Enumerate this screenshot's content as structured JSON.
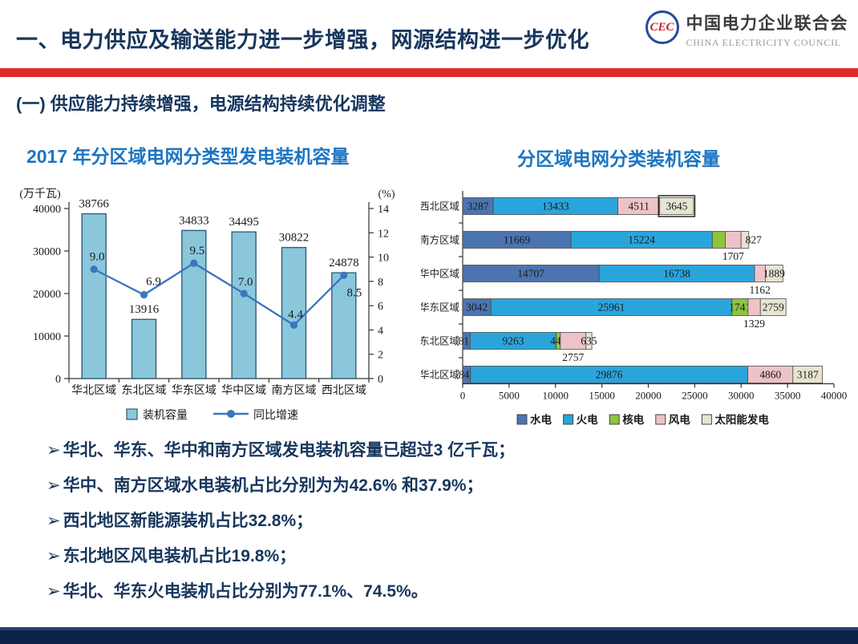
{
  "colors": {
    "heading": "#17365D",
    "accent_red": "#E02B2B",
    "chart_title_blue": "#1C75C2",
    "footer_navy": "#0C2347",
    "footer_edge": "#24416E",
    "logo_text": "#3A3A3A",
    "logo_sub": "#9A9A9A",
    "logo_ring": "#27489C",
    "logo_cec": "#C8202C"
  },
  "header": {
    "title": "一、电力供应及输送能力进一步增强，网源结构进一步优化",
    "logo": {
      "cn": "中国电力企业联合会",
      "en": "CHINA ELECTRICITY COUNCIL",
      "emblem": "CEC"
    }
  },
  "section": {
    "title": "(一)  供应能力持续增强，电源结构持续优化调整"
  },
  "bullets": {
    "marker": "➢",
    "items": [
      "华北、华东、华中和南方区域发电装机容量已超过3 亿千瓦；",
      "华中、南方区域水电装机占比分别为为42.6% 和37.9%；",
      "西北地区新能源装机占比32.8%；",
      "东北地区风电装机占比19.8%；",
      "华北、华东火电装机占比分别为77.1%、74.5%。"
    ]
  },
  "chart_data": [
    {
      "type": "bar",
      "title": "2017 年分区域电网分类型发电装机容量",
      "categories": [
        "华北区域",
        "东北区域",
        "华东区域",
        "华中区域",
        "南方区域",
        "西北区域"
      ],
      "series": [
        {
          "name": "装机容量",
          "type": "bar",
          "axis": "left",
          "values": [
            38766,
            13916,
            34833,
            34495,
            30822,
            24878
          ],
          "color": "#8BC7DB",
          "border": "#2E5F7A"
        },
        {
          "name": "同比增速",
          "type": "line",
          "axis": "right",
          "values": [
            9.0,
            6.9,
            9.5,
            7.0,
            4.4,
            8.5
          ],
          "labels": [
            "9.0",
            "6.9",
            "9.5",
            "7.0",
            "4.4",
            "8.5"
          ],
          "label_offsets": [
            [
              4,
              -11
            ],
            [
              12,
              -12
            ],
            [
              4,
              -11
            ],
            [
              2,
              -10
            ],
            [
              2,
              -9
            ],
            [
              13,
              26
            ]
          ],
          "color": "#3A75C0"
        }
      ],
      "left_axis": {
        "label": "(万千瓦)",
        "min": 0,
        "max": 40000,
        "ticks": [
          0,
          10000,
          20000,
          30000,
          40000
        ]
      },
      "right_axis": {
        "label": "(%)",
        "min": 0,
        "max": 14,
        "ticks": [
          0,
          2,
          4,
          6,
          8,
          10,
          12,
          14
        ]
      },
      "legend_position": "bottom",
      "grid": false
    },
    {
      "type": "bar",
      "orientation": "horizontal",
      "stacked": true,
      "title": "分区域电网分类装机容量",
      "categories": [
        "西北区域",
        "南方区域",
        "华中区域",
        "华东区域",
        "东北区域",
        "华北区域"
      ],
      "series": [
        {
          "name": "水电",
          "color": "#4C74B0",
          "values": [
            3287,
            11669,
            14707,
            3042,
            812,
            842
          ]
        },
        {
          "name": "火电",
          "color": "#2AA5DC",
          "values": [
            13433,
            15224,
            16738,
            25961,
            9263,
            29876
          ]
        },
        {
          "name": "核电",
          "color": "#8CC540",
          "values": [
            0,
            1395,
            0,
            1741,
            448,
            0
          ]
        },
        {
          "name": "风电",
          "color": "#EEC3C8",
          "values": [
            4511,
            1707,
            1162,
            1329,
            2757,
            4860
          ]
        },
        {
          "name": "太阳能发电",
          "color": "#E7E4D1",
          "values": [
            3645,
            827,
            1889,
            2759,
            635,
            3187
          ]
        }
      ],
      "x_axis": {
        "min": 0,
        "max": 40000,
        "ticks": [
          0,
          5000,
          10000,
          15000,
          20000,
          25000,
          30000,
          35000,
          40000
        ]
      },
      "label_layout": [
        {
          "0": "in",
          "1": "in",
          "3": "in",
          "4": "in-box"
        },
        {
          "0": "in",
          "1": "in",
          "2": "none",
          "3": "below",
          "4": "right"
        },
        {
          "0": "in",
          "1": "in",
          "3": "below",
          "4": "in"
        },
        {
          "0": "in",
          "1": "in",
          "2": "in",
          "3": "below",
          "4": "in"
        },
        {
          "0": "in",
          "1": "in",
          "2": "in",
          "3": "below",
          "4": "in"
        },
        {
          "0": "in",
          "1": "in",
          "3": "in",
          "4": "in"
        }
      ],
      "legend_position": "bottom",
      "grid": false
    }
  ]
}
